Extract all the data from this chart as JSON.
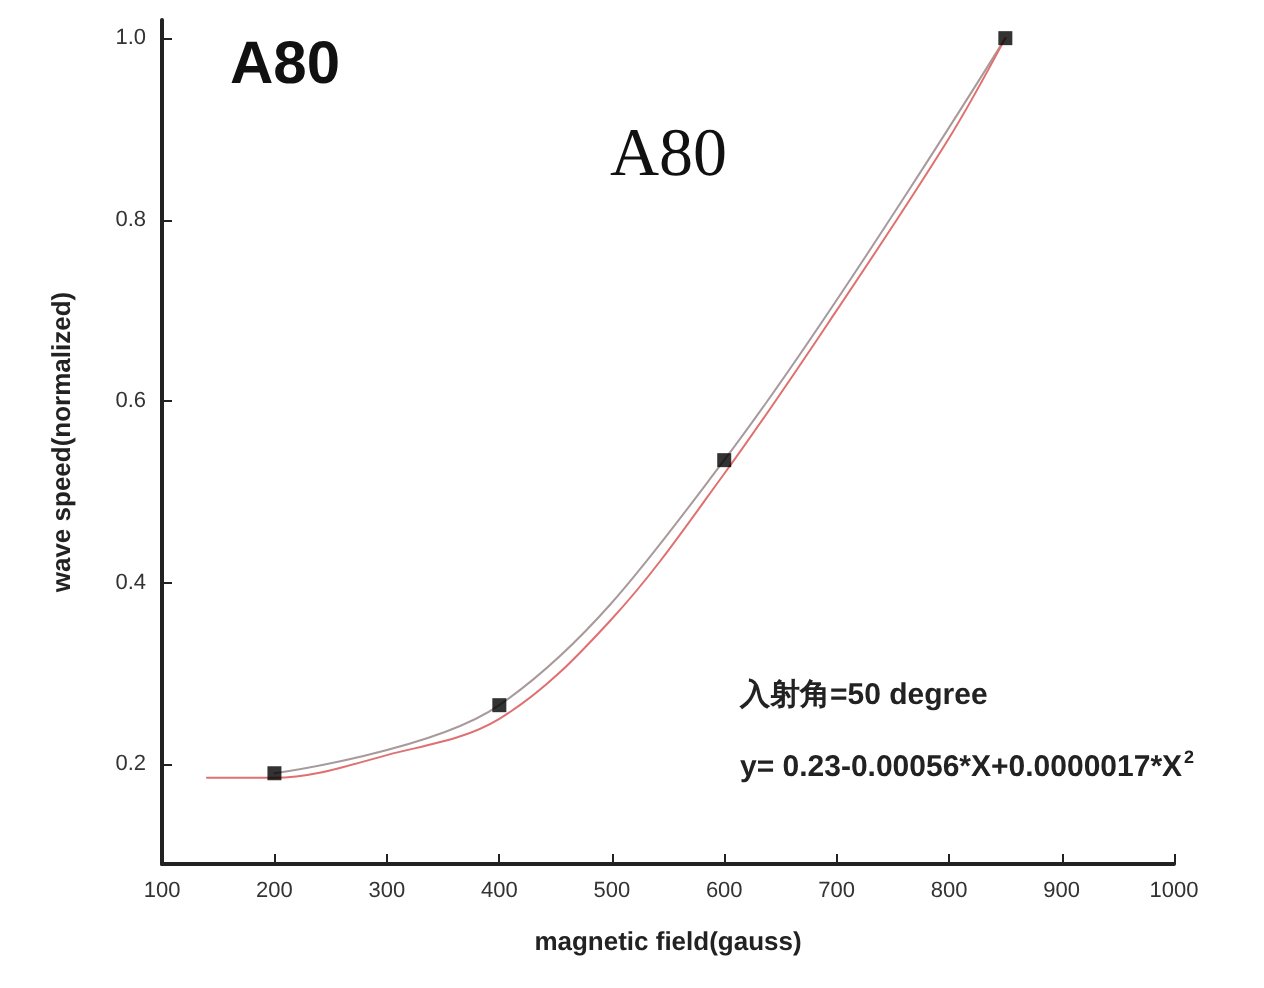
{
  "chart_data": {
    "type": "scatter",
    "title": "A80",
    "subtitle": "A80",
    "xlabel": "magnetic field(gauss)",
    "ylabel": "wave speed(normalized)",
    "annotations": [
      "入射角=50 degree",
      "y= 0.23-0.00056*X+0.0000017*X$^{2}$"
    ],
    "xlim": [
      100,
      1000
    ],
    "xticks": [
      100,
      200,
      300,
      400,
      500,
      600,
      700,
      800,
      900,
      1000
    ],
    "ylim": [
      0.09,
      1.02
    ],
    "yticks": [
      0.2,
      0.4,
      0.6,
      0.8,
      {
        "value": 1,
        "label": "1.0"
      }
    ],
    "grid": false,
    "series": [
      {
        "type": "line",
        "color": "#a89a9a",
        "marker": "none",
        "line_style": "solid",
        "x": [
          200,
          400,
          600,
          850
        ],
        "values": [
          0.19,
          0.265,
          0.535,
          1.0
        ]
      },
      {
        "type": "line",
        "color": "#e07070",
        "marker": "none",
        "line_style": "solid",
        "x": [
          140,
          200,
          300,
          400,
          500,
          600,
          700,
          800,
          850
        ],
        "values": [
          0.185,
          0.185,
          0.21,
          0.25,
          0.36,
          0.52,
          0.7,
          0.89,
          1.0
        ]
      },
      {
        "color": "#000000",
        "marker": "square",
        "x": [
          200,
          400,
          600,
          850
        ],
        "values": [
          0.19,
          0.265,
          0.535,
          1.0
        ]
      }
    ]
  }
}
